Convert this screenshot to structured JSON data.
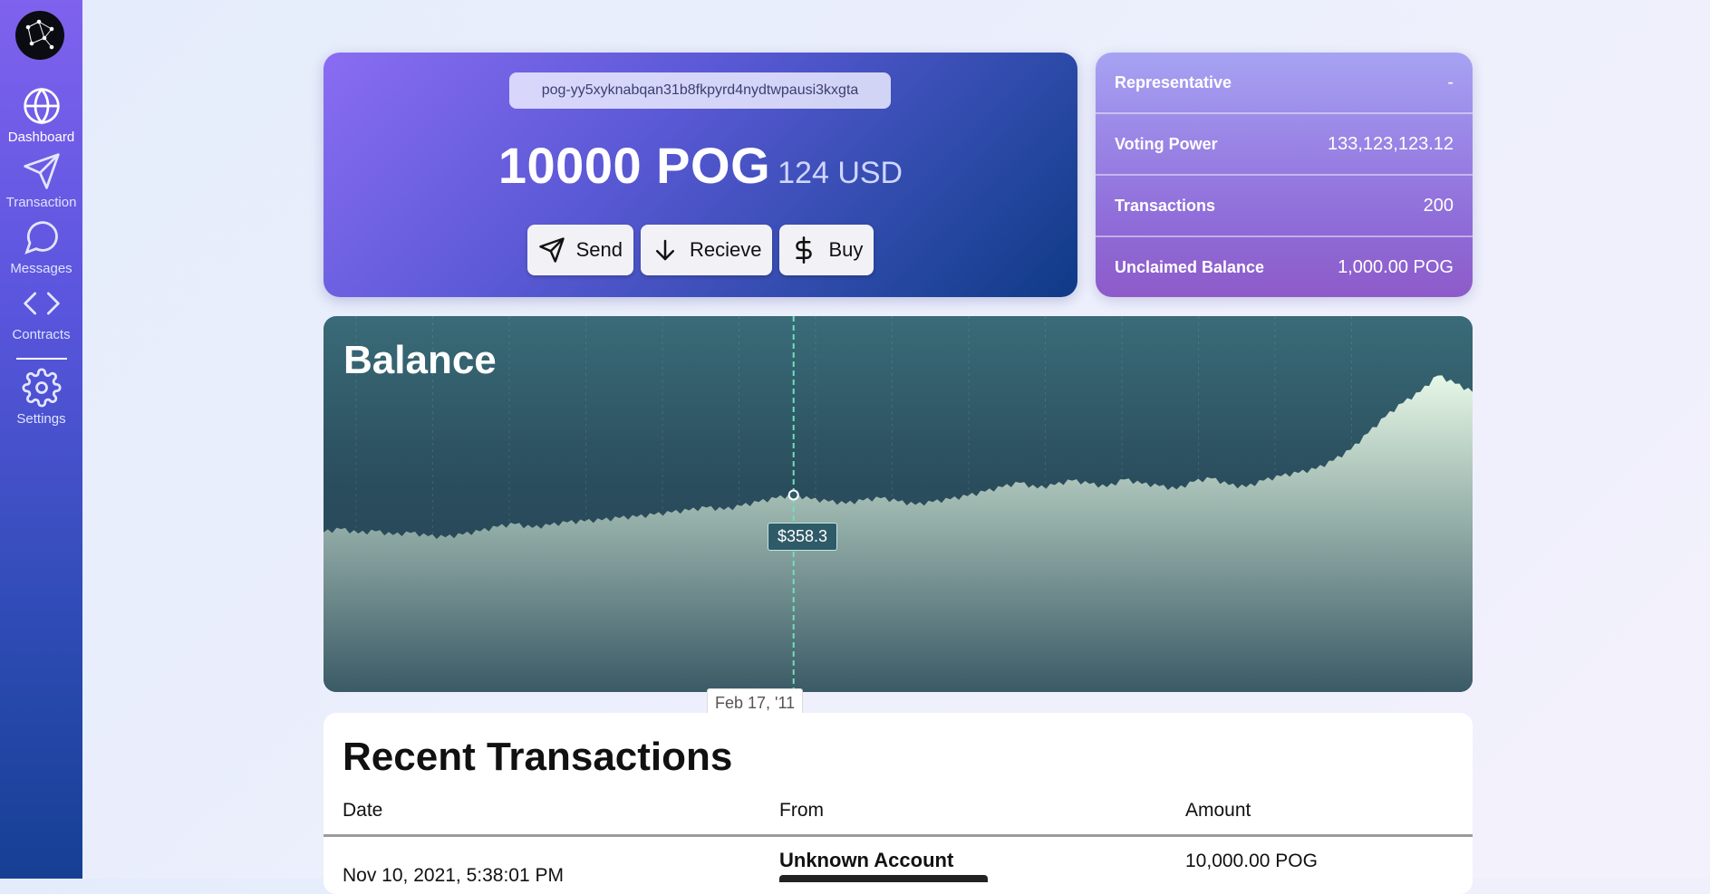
{
  "sidebar": {
    "items": [
      {
        "label": "Dashboard",
        "icon": "globe-icon",
        "active": true
      },
      {
        "label": "Transaction",
        "icon": "send-icon",
        "active": false
      },
      {
        "label": "Messages",
        "icon": "message-icon",
        "active": false
      },
      {
        "label": "Contracts",
        "icon": "code-icon",
        "active": false
      },
      {
        "label": "Settings",
        "icon": "gear-icon",
        "active": false
      }
    ]
  },
  "wallet": {
    "address": "pog-yy5xyknabqan31b8fkpyrd4nydtwpausi3kxgta",
    "balance": "10000 POG",
    "balance_usd": "124 USD",
    "actions": [
      {
        "label": "Send",
        "icon": "send-icon"
      },
      {
        "label": "Recieve",
        "icon": "arrow-down-icon"
      },
      {
        "label": "Buy",
        "icon": "dollar-icon"
      }
    ]
  },
  "stats": [
    {
      "label": "Representative",
      "value": "-"
    },
    {
      "label": "Voting Power",
      "value": "133,123,123.12"
    },
    {
      "label": "Transactions",
      "value": "200"
    },
    {
      "label": "Unclaimed Balance",
      "value": "1,000.00 POG"
    }
  ],
  "chart": {
    "title": "Balance",
    "tooltip_value": "$358.3",
    "tooltip_date": "Feb 17, '11"
  },
  "chart_data": {
    "type": "area",
    "title": "Balance",
    "cursor": {
      "date": "Feb 17, '11",
      "value": 358.3
    },
    "values": [
      290,
      296,
      288,
      292,
      285,
      289,
      283,
      281,
      286,
      292,
      300,
      305,
      298,
      303,
      308,
      310,
      312,
      316,
      318,
      322,
      326,
      330,
      335,
      331,
      338,
      345,
      352,
      358,
      350,
      346,
      342,
      348,
      352,
      346,
      340,
      345,
      350,
      356,
      364,
      372,
      380,
      370,
      376,
      384,
      378,
      372,
      386,
      378,
      374,
      368,
      382,
      388,
      376,
      372,
      384,
      392,
      398,
      405,
      420,
      440,
      470,
      500,
      525,
      545,
      575,
      560,
      545
    ]
  },
  "transactions": {
    "title": "Recent Transactions",
    "columns": [
      "Date",
      "From",
      "Amount"
    ],
    "rows": [
      {
        "date": "Nov 10, 2021, 5:38:01 PM",
        "from": "Unknown Account",
        "amount": "10,000.00 POG"
      }
    ]
  }
}
